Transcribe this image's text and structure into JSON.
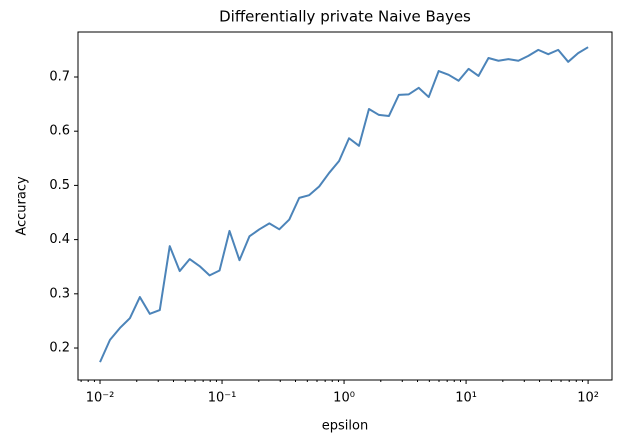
{
  "chart_data": {
    "type": "line",
    "title": "Differentially private Naive Bayes",
    "xlabel": "epsilon",
    "ylabel": "Accuracy",
    "x": [
      0.01,
      0.012068,
      0.014563,
      0.017575,
      0.02121,
      0.025595,
      0.030888,
      0.037276,
      0.044984,
      0.054287,
      0.065513,
      0.07906,
      0.09541,
      0.11514,
      0.13895,
      0.16768,
      0.20236,
      0.24421,
      0.29471,
      0.35565,
      0.42919,
      0.51795,
      0.62506,
      0.75431,
      0.9103,
      1.0985,
      1.3257,
      1.5999,
      1.9307,
      2.33,
      2.8118,
      3.3932,
      4.0949,
      4.9417,
      5.9636,
      7.1969,
      8.6851,
      10.481,
      12.649,
      15.264,
      18.421,
      22.23,
      26.827,
      32.375,
      39.069,
      47.149,
      56.899,
      68.665,
      82.864,
      100
    ],
    "series": [
      {
        "color": "#4c84b9",
        "values": [
          0.174,
          0.215,
          0.237,
          0.255,
          0.294,
          0.263,
          0.27,
          0.388,
          0.342,
          0.364,
          0.351,
          0.334,
          0.343,
          0.416,
          0.362,
          0.406,
          0.419,
          0.43,
          0.419,
          0.437,
          0.477,
          0.482,
          0.498,
          0.523,
          0.545,
          0.587,
          0.573,
          0.641,
          0.63,
          0.628,
          0.667,
          0.668,
          0.68,
          0.663,
          0.711,
          0.704,
          0.693,
          0.715,
          0.702,
          0.735,
          0.73,
          0.733,
          0.73,
          0.739,
          0.75,
          0.742,
          0.75,
          0.728,
          0.744,
          0.755
        ]
      }
    ],
    "xscale": "log",
    "xlim": [
      0.0066,
      157
    ],
    "ylim": [
      0.141,
      0.783
    ],
    "xticks": [
      {
        "value": 0.01,
        "label": "10⁻²"
      },
      {
        "value": 0.1,
        "label": "10⁻¹"
      },
      {
        "value": 1,
        "label": "10⁰"
      },
      {
        "value": 10,
        "label": "10¹"
      },
      {
        "value": 100,
        "label": "10²"
      }
    ],
    "yticks": [
      0.2,
      0.3,
      0.4,
      0.5,
      0.6,
      0.7
    ]
  }
}
